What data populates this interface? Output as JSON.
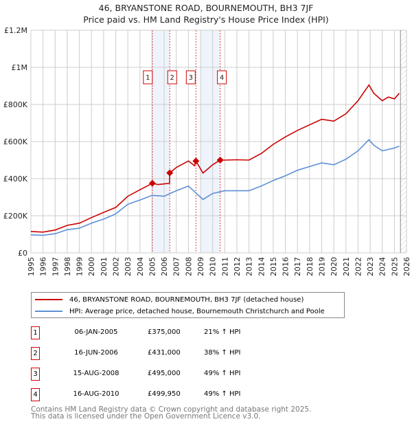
{
  "title": "46, BRYANSTONE ROAD, BOURNEMOUTH, BH3 7JF",
  "subtitle": "Price paid vs. HM Land Registry's House Price Index (HPI)",
  "chart_data": {
    "type": "line",
    "xlim": [
      1995,
      2026
    ],
    "ylim": [
      0,
      1200000
    ],
    "y_ticks": [
      {
        "v": 0,
        "label": "£0"
      },
      {
        "v": 200000,
        "label": "£200K"
      },
      {
        "v": 400000,
        "label": "£400K"
      },
      {
        "v": 600000,
        "label": "£600K"
      },
      {
        "v": 800000,
        "label": "£800K"
      },
      {
        "v": 1000000,
        "label": "£1M"
      },
      {
        "v": 1200000,
        "label": "£1.2M"
      }
    ],
    "x_ticks": [
      "1995",
      "1996",
      "1997",
      "1998",
      "1999",
      "2000",
      "2001",
      "2002",
      "2003",
      "2004",
      "2005",
      "2006",
      "2007",
      "2008",
      "2009",
      "2010",
      "2011",
      "2012",
      "2013",
      "2014",
      "2015",
      "2016",
      "2017",
      "2018",
      "2019",
      "2020",
      "2021",
      "2022",
      "2023",
      "2024",
      "2025",
      "2026"
    ],
    "grid": true,
    "series": [
      {
        "name": "46, BRYANSTONE ROAD, BOURNEMOUTH, BH3 7JF (detached house)",
        "color": "#cc0000",
        "x": [
          1995,
          1996,
          1997,
          1998,
          1999,
          2000,
          2001,
          2002,
          2003,
          2004,
          2005.02,
          2005.5,
          2006.44,
          2006.46,
          2007,
          2008,
          2008.5,
          2008.62,
          2009.2,
          2010,
          2010.62,
          2011,
          2012,
          2013,
          2014,
          2015,
          2016,
          2017,
          2018,
          2019,
          2020,
          2021,
          2022,
          2022.9,
          2023.3,
          2024,
          2024.5,
          2025,
          2025.4
        ],
        "y": [
          115000,
          112000,
          123000,
          148000,
          160000,
          190000,
          218000,
          245000,
          305000,
          340000,
          375000,
          368000,
          375000,
          431000,
          460000,
          495000,
          470000,
          495000,
          430000,
          475000,
          499950,
          500000,
          502000,
          500000,
          535000,
          585000,
          625000,
          660000,
          690000,
          720000,
          710000,
          750000,
          820000,
          905000,
          860000,
          820000,
          840000,
          830000,
          860000
        ]
      },
      {
        "name": "HPI: Average price, detached house, Bournemouth Christchurch and Poole",
        "color": "#5b8fd4",
        "x": [
          1995,
          1996,
          1997,
          1998,
          1999,
          2000,
          2001,
          2002,
          2003,
          2004,
          2005,
          2006,
          2007,
          2008,
          2009.2,
          2010,
          2011,
          2012,
          2013,
          2014,
          2015,
          2016,
          2017,
          2018,
          2019,
          2020,
          2021,
          2022,
          2022.9,
          2023.3,
          2024,
          2025,
          2025.4
        ],
        "y": [
          97000,
          95000,
          103000,
          125000,
          133000,
          160000,
          182000,
          210000,
          262000,
          285000,
          310000,
          305000,
          335000,
          360000,
          288000,
          320000,
          335000,
          335000,
          335000,
          360000,
          390000,
          415000,
          445000,
          465000,
          485000,
          475000,
          505000,
          550000,
          610000,
          580000,
          550000,
          565000,
          575000
        ]
      }
    ],
    "sales": [
      {
        "n": "1",
        "x": 2005.02,
        "y": 375000
      },
      {
        "n": "2",
        "x": 2006.46,
        "y": 431000
      },
      {
        "n": "3",
        "x": 2008.62,
        "y": 495000
      },
      {
        "n": "4",
        "x": 2010.62,
        "y": 499950
      }
    ],
    "shaded_ranges": [
      [
        2005.02,
        2006.46
      ],
      [
        2009.0,
        2010.62
      ]
    ],
    "forecast_hatch_from": 2025.5,
    "legend_position": "below"
  },
  "legend": [
    "46, BRYANSTONE ROAD, BOURNEMOUTH, BH3 7JF (detached house)",
    "HPI: Average price, detached house, Bournemouth Christchurch and Poole"
  ],
  "transactions": [
    {
      "n": "1",
      "date": "06-JAN-2005",
      "price": "£375,000",
      "hpi": "21% ↑ HPI"
    },
    {
      "n": "2",
      "date": "16-JUN-2006",
      "price": "£431,000",
      "hpi": "38% ↑ HPI"
    },
    {
      "n": "3",
      "date": "15-AUG-2008",
      "price": "£495,000",
      "hpi": "49% ↑ HPI"
    },
    {
      "n": "4",
      "date": "16-AUG-2010",
      "price": "£499,950",
      "hpi": "49% ↑ HPI"
    }
  ],
  "footer": [
    "Contains HM Land Registry data © Crown copyright and database right 2025.",
    "This data is licensed under the Open Government Licence v3.0."
  ]
}
